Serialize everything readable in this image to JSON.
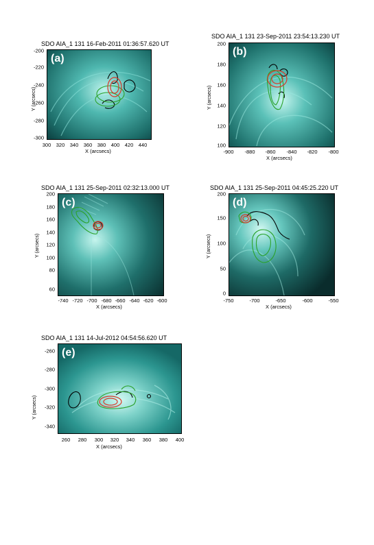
{
  "panels": [
    {
      "label": "(a)",
      "title": "SDO AIA_1 131 16-Feb-2011 01:36:57.620 UT",
      "xlabel": "X (arcsecs)",
      "ylabel": "Y (arcsecs)",
      "xticks": [
        "300",
        "320",
        "340",
        "360",
        "380",
        "400",
        "420",
        "440"
      ],
      "yticks": [
        "-200",
        "-220",
        "-240",
        "-260",
        "-280",
        "-300"
      ]
    },
    {
      "label": "(b)",
      "title": "SDO AIA_1 131 23-Sep-2011 23:54:13.230 UT",
      "xlabel": "X (arcsecs)",
      "ylabel": "Y (arcsecs)",
      "xticks": [
        "-900",
        "-880",
        "-860",
        "-840",
        "-820",
        "-800"
      ],
      "yticks": [
        "200",
        "180",
        "160",
        "140",
        "120",
        "100"
      ]
    },
    {
      "label": "(c)",
      "title": "SDO AIA_1 131 25-Sep-2011 02:32:13.000 UT",
      "xlabel": "X (arcsecs)",
      "ylabel": "Y (arcsecs)",
      "xticks": [
        "-740",
        "-720",
        "-700",
        "-680",
        "-660",
        "-640",
        "-620",
        "-600"
      ],
      "yticks": [
        "200",
        "180",
        "160",
        "140",
        "120",
        "100",
        "80",
        "60"
      ]
    },
    {
      "label": "(d)",
      "title": "SDO AIA_1 131 25-Sep-2011 04:45:25.220 UT",
      "xlabel": "X (arcsecs)",
      "ylabel": "Y (arcsecs)",
      "xticks": [
        "-750",
        "-700",
        "-650",
        "-600",
        "-550"
      ],
      "yticks": [
        "200",
        "150",
        "100",
        "50",
        "0"
      ]
    },
    {
      "label": "(e)",
      "title": "SDO AIA_1 131 14-Jul-2012 04:54:56.620 UT",
      "xlabel": "X (arcsecs)",
      "ylabel": "Y (arcsecs)",
      "xticks": [
        "260",
        "280",
        "300",
        "320",
        "340",
        "360",
        "380",
        "400"
      ],
      "yticks": [
        "-260",
        "-280",
        "-300",
        "-320",
        "-340"
      ]
    }
  ],
  "colors": {
    "image_dark": "#0b3f3f",
    "image_mid": "#2a8f8a",
    "image_bright": "#bff3ec",
    "contour_black": "#000000",
    "contour_red": "#d83a2a",
    "contour_green": "#2aa22a"
  }
}
